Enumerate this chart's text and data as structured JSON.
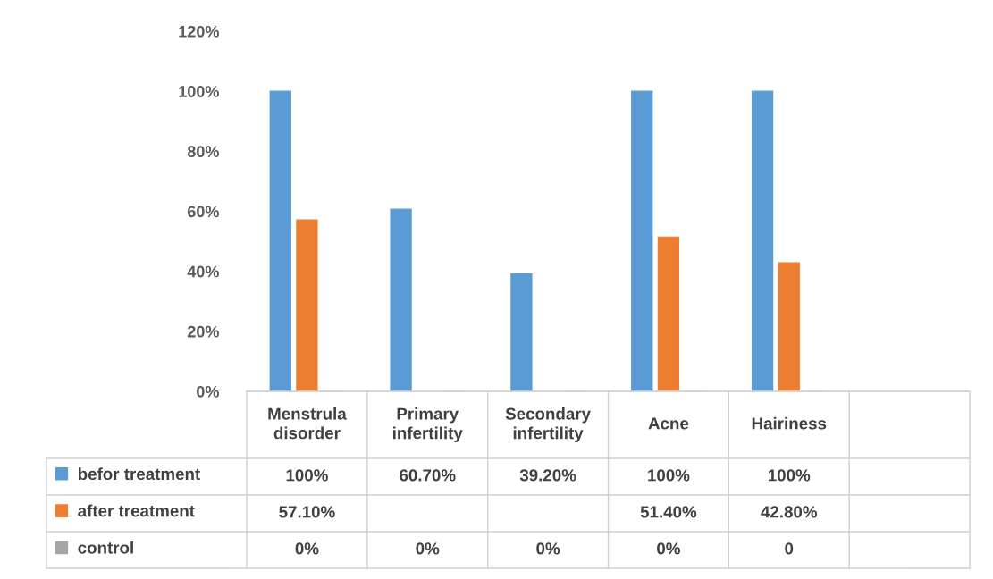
{
  "chart_data": {
    "type": "bar",
    "categories": [
      "Menstrula disorder",
      "Primary infertility",
      "Secondary infertility",
      "Acne",
      "Hairiness",
      null
    ],
    "series": [
      {
        "name": "befor treatment",
        "color": "#5b9bd5",
        "values": [
          100,
          60.7,
          39.2,
          100,
          100,
          null
        ],
        "value_labels": [
          "100%",
          "60.70%",
          "39.20%",
          "100%",
          "100%",
          null
        ]
      },
      {
        "name": "after treatment",
        "color": "#ed7d31",
        "values": [
          57.1,
          null,
          null,
          51.4,
          42.8,
          null
        ],
        "value_labels": [
          "57.10%",
          null,
          null,
          "51.40%",
          "42.80%",
          null
        ]
      },
      {
        "name": "control",
        "color": "#a5a5a5",
        "values": [
          0,
          0,
          0,
          0,
          0,
          null
        ],
        "value_labels": [
          "0%",
          "0%",
          "0%",
          "0%",
          "0",
          null
        ]
      }
    ],
    "legend": "bottom left",
    "ylim": [
      0,
      120
    ],
    "yticks": [
      {
        "value": 0,
        "label": "0%"
      },
      {
        "value": 20,
        "label": "20%"
      },
      {
        "value": 40,
        "label": "40%"
      },
      {
        "value": 60,
        "label": "60%"
      },
      {
        "value": 80,
        "label": "80%"
      },
      {
        "value": 100,
        "label": "100%"
      },
      {
        "value": 120,
        "label": "120%"
      }
    ]
  }
}
